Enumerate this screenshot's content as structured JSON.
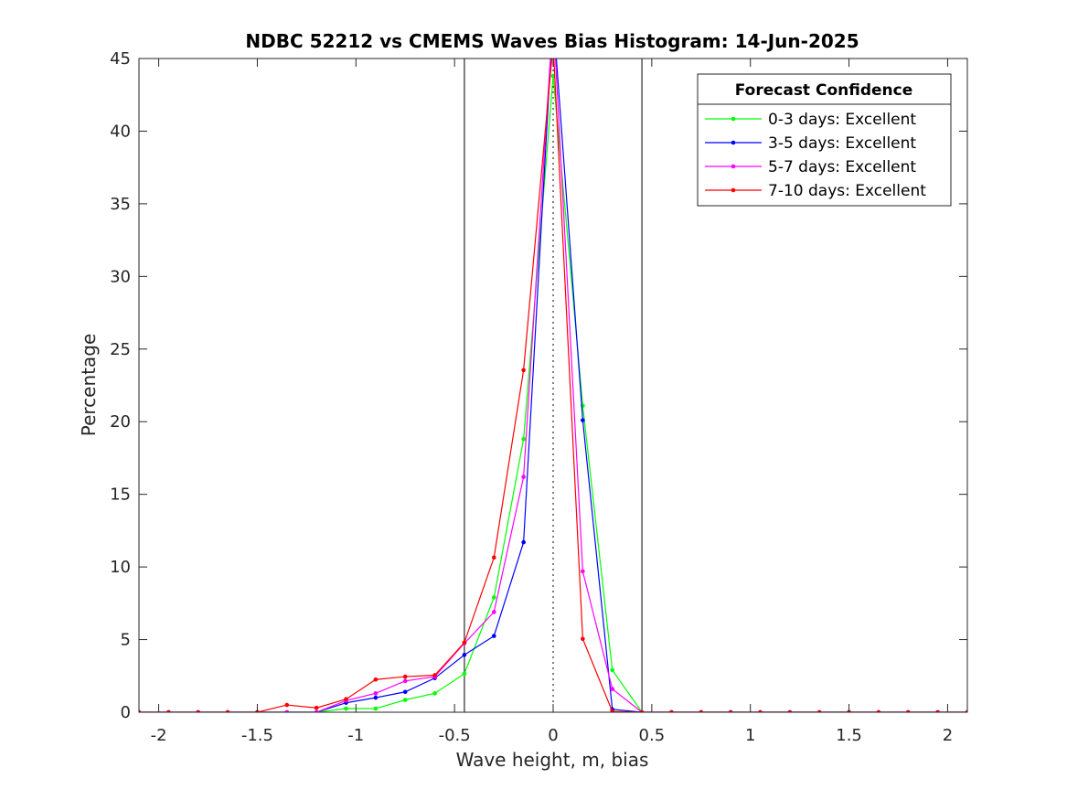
{
  "chart_data": {
    "type": "line",
    "title": "NDBC 52212 vs CMEMS Waves Bias Histogram: 14-Jun-2025",
    "xlabel": "Wave height, m, bias",
    "ylabel": "Percentage",
    "xlim": [
      -2.1,
      2.1
    ],
    "ylim": [
      0,
      45
    ],
    "xticks": [
      -2,
      -1.5,
      -1,
      -0.5,
      0,
      0.5,
      1,
      1.5,
      2
    ],
    "xtick_labels": [
      "-2",
      "-1.5",
      "-1",
      "-0.5",
      "0",
      "0.5",
      "1",
      "1.5",
      "2"
    ],
    "yticks": [
      0,
      5,
      10,
      15,
      20,
      25,
      30,
      35,
      40,
      45
    ],
    "ytick_labels": [
      "0",
      "5",
      "10",
      "15",
      "20",
      "25",
      "30",
      "35",
      "40",
      "45"
    ],
    "grid": false,
    "vertical_lines": [
      {
        "x": -0.45,
        "style": "solid"
      },
      {
        "x": 0.45,
        "style": "solid"
      },
      {
        "x": 0,
        "style": "dotted"
      }
    ],
    "legend": {
      "title": "Forecast Confidence",
      "placement": "top-right"
    },
    "x": [
      -2.1,
      -1.95,
      -1.8,
      -1.65,
      -1.5,
      -1.35,
      -1.2,
      -1.05,
      -0.9,
      -0.75,
      -0.6,
      -0.45,
      -0.3,
      -0.15,
      0,
      0.15,
      0.3,
      0.45,
      0.6,
      0.75,
      0.9,
      1.05,
      1.2,
      1.35,
      1.5,
      1.65,
      1.8,
      1.95,
      2.1
    ],
    "series": [
      {
        "name": "0-3 days: Excellent",
        "color": "#00ff00",
        "values": [
          0,
          0,
          0,
          0,
          0,
          0,
          0,
          0.25,
          0.25,
          0.85,
          1.3,
          2.65,
          7.9,
          18.8,
          43.8,
          21.1,
          2.9,
          0,
          0,
          0,
          0,
          0,
          0,
          0,
          0,
          0,
          0,
          0,
          0
        ]
      },
      {
        "name": "3-5 days: Excellent",
        "color": "#0000ff",
        "values": [
          0,
          0,
          0,
          0,
          0,
          0,
          0,
          0.65,
          1.0,
          1.4,
          2.35,
          3.95,
          5.25,
          11.7,
          48.0,
          20.1,
          0.2,
          0,
          0,
          0,
          0,
          0,
          0,
          0,
          0,
          0,
          0,
          0,
          0
        ]
      },
      {
        "name": "5-7 days: Excellent",
        "color": "#ff00ff",
        "values": [
          0,
          0,
          0,
          0,
          0,
          0,
          0,
          0.8,
          1.3,
          2.15,
          2.45,
          4.75,
          6.9,
          16.2,
          48.0,
          9.7,
          1.6,
          0,
          0,
          0,
          0,
          0,
          0,
          0,
          0,
          0,
          0,
          0,
          0
        ]
      },
      {
        "name": "7-10 days: Excellent",
        "color": "#ff0000",
        "values": [
          0,
          0,
          0,
          0,
          0,
          0.5,
          0.3,
          0.9,
          2.25,
          2.45,
          2.55,
          4.8,
          10.65,
          23.55,
          46.0,
          5.05,
          0.05,
          0,
          0,
          0,
          0,
          0,
          0,
          0,
          0,
          0,
          0,
          0,
          0
        ]
      }
    ]
  }
}
